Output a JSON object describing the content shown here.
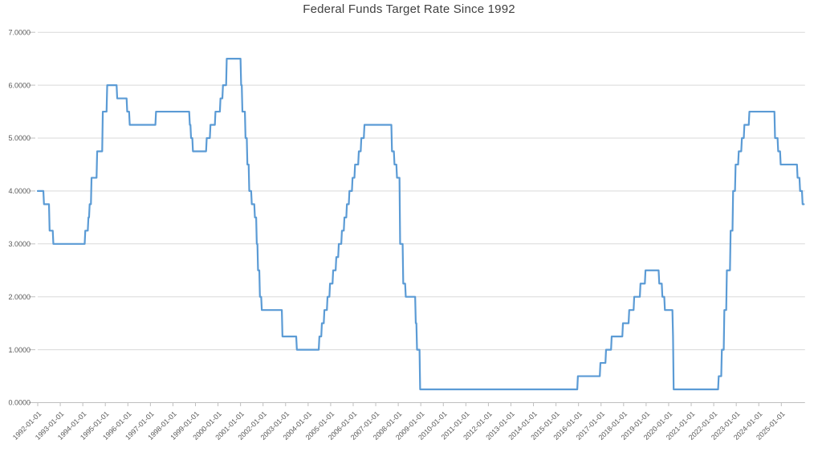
{
  "chart_data": {
    "type": "line",
    "title": "Federal Funds Target Rate Since 1992",
    "grid": true,
    "legend_position": "none",
    "colors": {
      "line": "#5B9BD5",
      "gridline": "#D9D9D9",
      "axis": "#BFBFBF",
      "tick_text": "#595959",
      "title_text": "#404040"
    },
    "y_axis": {
      "min": 0,
      "max": 7,
      "tick_step": 1,
      "tick_labels": [
        "0.0000",
        "1.0000",
        "2.0000",
        "3.0000",
        "4.0000",
        "5.0000",
        "6.0000",
        "7.0000"
      ]
    },
    "x_axis": {
      "start_year": 1992,
      "end_year_fraction": 2026.05,
      "tick_labels": [
        "1992-01-01",
        "1993-01-01",
        "1994-01-01",
        "1995-01-01",
        "1996-01-01",
        "1997-01-01",
        "1998-01-01",
        "1999-01-01",
        "2000-01-01",
        "2001-01-01",
        "2002-01-01",
        "2003-01-01",
        "2004-01-01",
        "2005-01-01",
        "2006-01-01",
        "2007-01-01",
        "2008-01-01",
        "2009-01-01",
        "2010-01-01",
        "2011-01-01",
        "2012-01-01",
        "2013-01-01",
        "2014-01-01",
        "2015-01-01",
        "2016-01-01",
        "2017-01-01",
        "2018-01-01",
        "2019-01-01",
        "2020-01-01",
        "2021-01-01",
        "2022-01-01",
        "2023-01-01",
        "2024-01-01",
        "2025-01-01"
      ]
    },
    "series": [
      {
        "name": "Federal Funds Target Rate",
        "end_date": "2025-12-31",
        "rate_changes": [
          [
            "1992-01-01",
            4.0
          ],
          [
            "1992-04-09",
            3.75
          ],
          [
            "1992-07-02",
            3.25
          ],
          [
            "1992-09-04",
            3.0
          ],
          [
            "1994-02-04",
            3.25
          ],
          [
            "1994-03-22",
            3.5
          ],
          [
            "1994-04-18",
            3.75
          ],
          [
            "1994-05-17",
            4.25
          ],
          [
            "1994-08-16",
            4.75
          ],
          [
            "1994-11-15",
            5.5
          ],
          [
            "1995-02-01",
            6.0
          ],
          [
            "1995-07-06",
            5.75
          ],
          [
            "1995-12-19",
            5.5
          ],
          [
            "1996-01-31",
            5.25
          ],
          [
            "1997-03-25",
            5.5
          ],
          [
            "1998-09-29",
            5.25
          ],
          [
            "1998-10-15",
            5.0
          ],
          [
            "1998-11-17",
            4.75
          ],
          [
            "1999-06-30",
            5.0
          ],
          [
            "1999-08-24",
            5.25
          ],
          [
            "1999-11-16",
            5.5
          ],
          [
            "2000-02-02",
            5.75
          ],
          [
            "2000-03-21",
            6.0
          ],
          [
            "2000-05-16",
            6.5
          ],
          [
            "2001-01-03",
            6.0
          ],
          [
            "2001-01-31",
            5.5
          ],
          [
            "2001-03-20",
            5.0
          ],
          [
            "2001-04-18",
            4.5
          ],
          [
            "2001-05-15",
            4.0
          ],
          [
            "2001-06-27",
            3.75
          ],
          [
            "2001-08-21",
            3.5
          ],
          [
            "2001-09-17",
            3.0
          ],
          [
            "2001-10-02",
            2.5
          ],
          [
            "2001-11-06",
            2.0
          ],
          [
            "2001-12-11",
            1.75
          ],
          [
            "2002-11-06",
            1.25
          ],
          [
            "2003-06-25",
            1.0
          ],
          [
            "2004-06-30",
            1.25
          ],
          [
            "2004-08-10",
            1.5
          ],
          [
            "2004-09-21",
            1.75
          ],
          [
            "2004-11-10",
            2.0
          ],
          [
            "2004-12-14",
            2.25
          ],
          [
            "2005-02-02",
            2.5
          ],
          [
            "2005-03-22",
            2.75
          ],
          [
            "2005-05-03",
            3.0
          ],
          [
            "2005-06-30",
            3.25
          ],
          [
            "2005-08-09",
            3.5
          ],
          [
            "2005-09-20",
            3.75
          ],
          [
            "2005-11-01",
            4.0
          ],
          [
            "2005-12-13",
            4.25
          ],
          [
            "2006-01-31",
            4.5
          ],
          [
            "2006-03-28",
            4.75
          ],
          [
            "2006-05-10",
            5.0
          ],
          [
            "2006-06-29",
            5.25
          ],
          [
            "2007-09-18",
            4.75
          ],
          [
            "2007-10-31",
            4.5
          ],
          [
            "2007-12-11",
            4.25
          ],
          [
            "2008-01-22",
            3.5
          ],
          [
            "2008-01-30",
            3.0
          ],
          [
            "2008-03-18",
            2.25
          ],
          [
            "2008-04-30",
            2.0
          ],
          [
            "2008-10-08",
            1.5
          ],
          [
            "2008-10-29",
            1.0
          ],
          [
            "2008-12-16",
            0.25
          ],
          [
            "2015-12-17",
            0.5
          ],
          [
            "2016-12-15",
            0.75
          ],
          [
            "2017-03-16",
            1.0
          ],
          [
            "2017-06-15",
            1.25
          ],
          [
            "2017-12-14",
            1.5
          ],
          [
            "2018-03-22",
            1.75
          ],
          [
            "2018-06-14",
            2.0
          ],
          [
            "2018-09-27",
            2.25
          ],
          [
            "2018-12-20",
            2.5
          ],
          [
            "2019-08-01",
            2.25
          ],
          [
            "2019-09-19",
            2.0
          ],
          [
            "2019-10-31",
            1.75
          ],
          [
            "2020-03-04",
            1.25
          ],
          [
            "2020-03-16",
            0.25
          ],
          [
            "2022-03-17",
            0.5
          ],
          [
            "2022-05-05",
            1.0
          ],
          [
            "2022-06-16",
            1.75
          ],
          [
            "2022-07-28",
            2.5
          ],
          [
            "2022-09-22",
            3.25
          ],
          [
            "2022-11-03",
            4.0
          ],
          [
            "2022-12-15",
            4.5
          ],
          [
            "2023-02-02",
            4.75
          ],
          [
            "2023-03-23",
            5.0
          ],
          [
            "2023-05-04",
            5.25
          ],
          [
            "2023-07-27",
            5.5
          ],
          [
            "2024-09-19",
            5.0
          ],
          [
            "2024-11-08",
            4.75
          ],
          [
            "2024-12-19",
            4.5
          ],
          [
            "2025-09-18",
            4.25
          ],
          [
            "2025-10-30",
            4.0
          ],
          [
            "2025-12-11",
            3.75
          ]
        ]
      }
    ]
  }
}
